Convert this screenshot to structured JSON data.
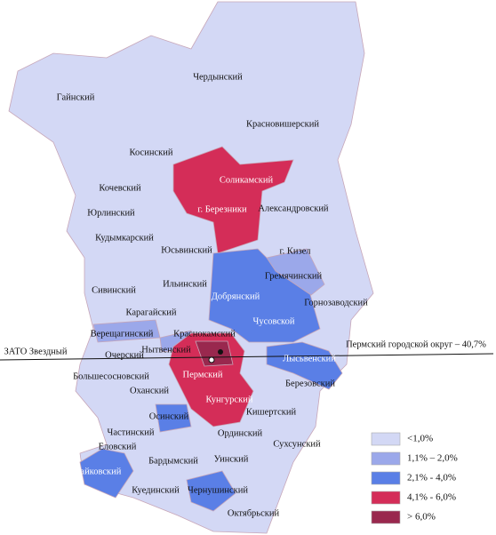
{
  "map": {
    "regions": [
      "Чердынский",
      "Гайнский",
      "Красновишерский",
      "Косинский",
      "Соликамский",
      "Кочевский",
      "г. Березники",
      "Александровский",
      "Юрлинский",
      "Кудымкарский",
      "Юсьвинский",
      "г. Кизел",
      "Гремячинский",
      "Ильинский",
      "Сивинский",
      "Добрянский",
      "Горнозаводский",
      "Карагайский",
      "Чусовской",
      "Верещагинский",
      "Краснокамский",
      "Пермский городской округ – 40,7%",
      "ЗАТО Звездный",
      "Очерский",
      "Нытвенский",
      "Лысьвенский",
      "Большесосновский",
      "Пермский",
      "Березовский",
      "Оханский",
      "Кунгурский",
      "Кишертский",
      "Осинский",
      "Частинский",
      "Ординский",
      "Сухсунский",
      "Еловский",
      "Бардымский",
      "Уинский",
      "Чайковский",
      "Куединский",
      "Чернушинский",
      "Октябрьский"
    ],
    "legend": [
      {
        "label": "<1,0%",
        "color": "#d3d8f5"
      },
      {
        "label": "1,1% – 2,0%",
        "color": "#9ba8ea"
      },
      {
        "label": "2,1% - 4,0%",
        "color": "#5a7fe6"
      },
      {
        "label": "4,1% - 6,0%",
        "color": "#d42d58"
      },
      {
        "label": "> 6,0%",
        "color": "#99284e"
      }
    ]
  }
}
